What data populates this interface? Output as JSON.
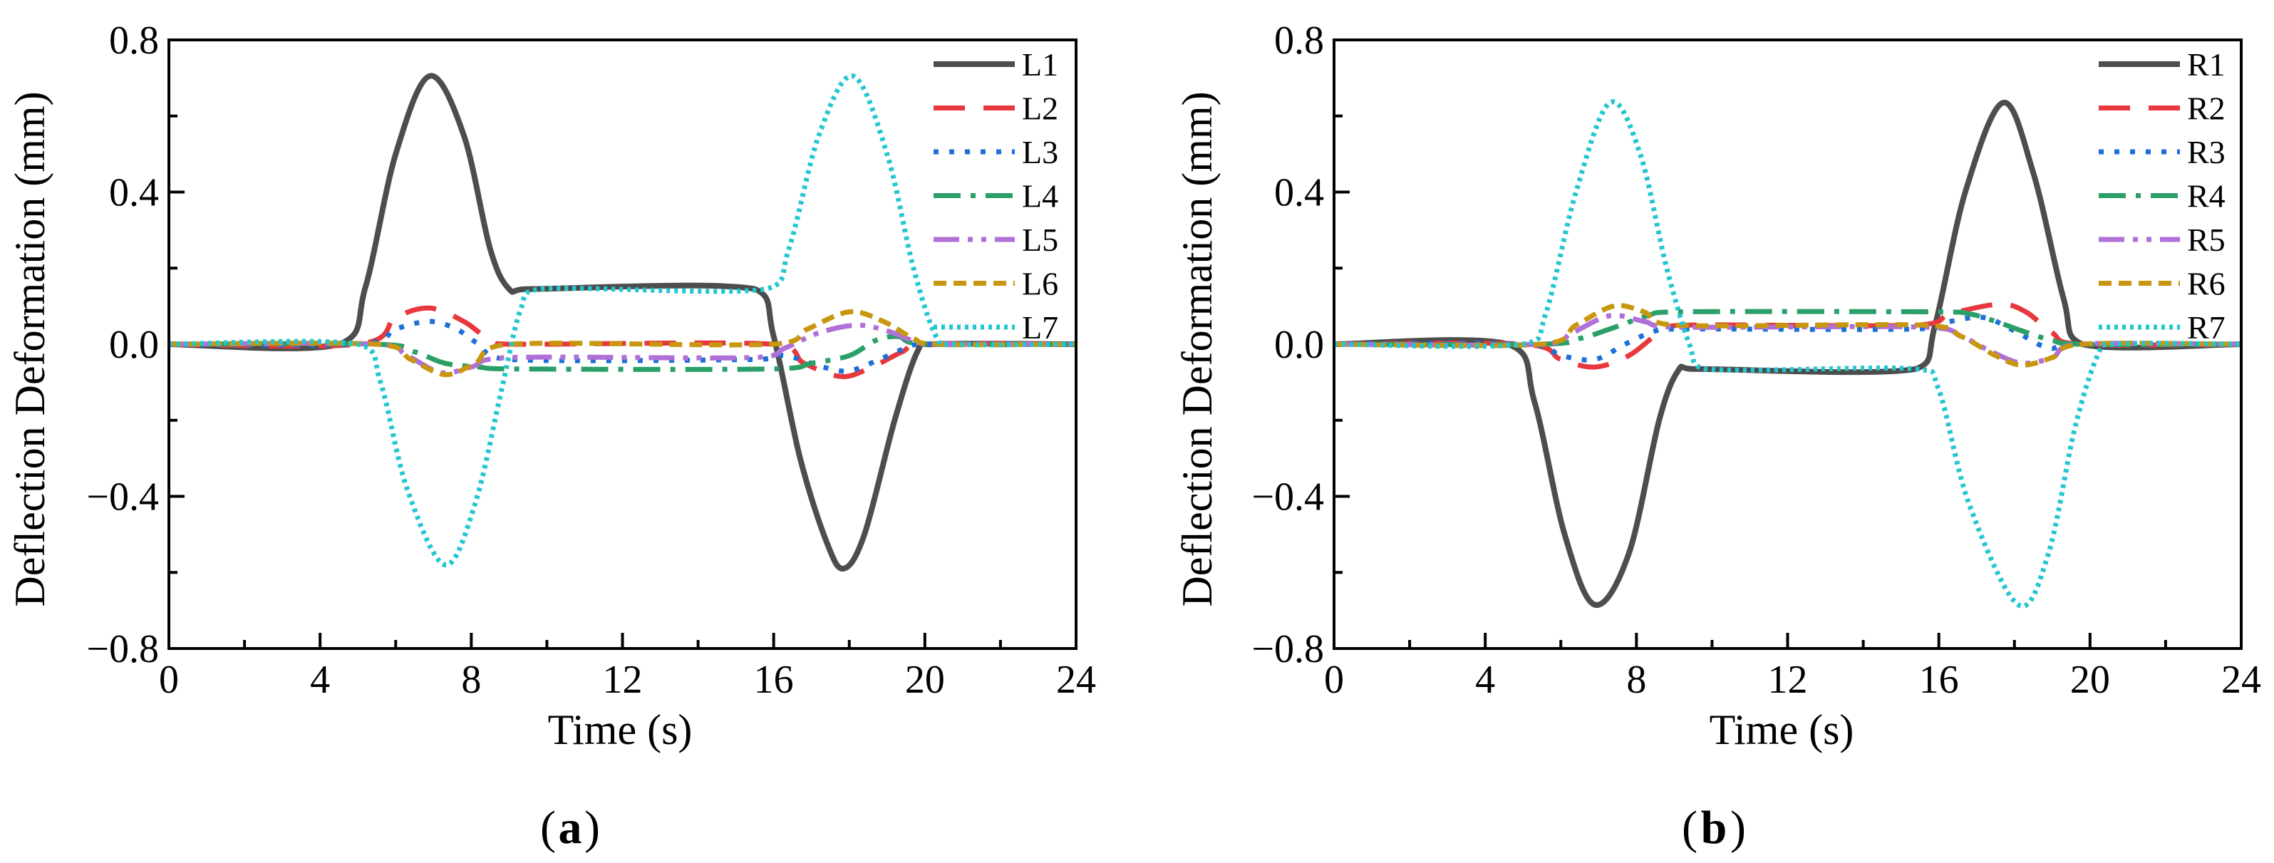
{
  "figure_labels": {
    "a": "a",
    "b": "b"
  },
  "chart_data": [
    {
      "id": "a",
      "type": "line",
      "panel_label": "a",
      "title": "",
      "xlabel": "Time (s)",
      "ylabel": "Deflection Deformation (mm)",
      "xlim": [
        0,
        24
      ],
      "ylim": [
        -0.8,
        0.8
      ],
      "x_ticks": [
        0,
        4,
        8,
        12,
        16,
        20,
        24
      ],
      "x_tick_labels": [
        "0",
        "4",
        "8",
        "12",
        "16",
        "20",
        "24"
      ],
      "y_ticks": [
        -0.8,
        -0.4,
        0.0,
        0.4,
        0.8
      ],
      "y_tick_labels": [
        "−0.8",
        "−0.4",
        "0.0",
        "0.4",
        "0.8"
      ],
      "legend_position": "top-right",
      "series": [
        {
          "name": "L1",
          "color": "#4d4d4d",
          "dash": "solid",
          "points": [
            [
              0,
              0
            ],
            [
              4.5,
              0
            ],
            [
              5.2,
              0.15
            ],
            [
              6,
              0.5
            ],
            [
              6.9,
              0.705
            ],
            [
              7.8,
              0.55
            ],
            [
              8.5,
              0.25
            ],
            [
              9,
              0.145
            ],
            [
              9.5,
              0.145
            ],
            [
              15.5,
              0.145
            ],
            [
              16,
              0.02
            ],
            [
              16.7,
              -0.3
            ],
            [
              17.4,
              -0.52
            ],
            [
              17.85,
              -0.59
            ],
            [
              18.4,
              -0.5
            ],
            [
              19.2,
              -0.2
            ],
            [
              19.8,
              -0.02
            ],
            [
              20.2,
              0
            ],
            [
              24,
              0
            ]
          ]
        },
        {
          "name": "L2",
          "color": "#e8383d",
          "dash": "longdash",
          "points": [
            [
              0,
              0
            ],
            [
              5,
              0
            ],
            [
              6,
              0.07
            ],
            [
              6.9,
              0.095
            ],
            [
              7.8,
              0.06
            ],
            [
              8.5,
              0.01
            ],
            [
              9,
              0
            ],
            [
              16,
              0
            ],
            [
              16.8,
              -0.05
            ],
            [
              17.8,
              -0.085
            ],
            [
              18.6,
              -0.06
            ],
            [
              19.4,
              -0.02
            ],
            [
              20,
              0
            ],
            [
              24,
              0
            ]
          ]
        },
        {
          "name": "L3",
          "color": "#1f6fd8",
          "dash": "dot",
          "points": [
            [
              0,
              0
            ],
            [
              5,
              0
            ],
            [
              6,
              0.04
            ],
            [
              6.9,
              0.06
            ],
            [
              7.6,
              0.04
            ],
            [
              8.2,
              0
            ],
            [
              9,
              -0.04
            ],
            [
              15.5,
              -0.04
            ],
            [
              16.3,
              -0.03
            ],
            [
              17.3,
              -0.06
            ],
            [
              18,
              -0.07
            ],
            [
              18.8,
              -0.04
            ],
            [
              19.5,
              -0.01
            ],
            [
              20,
              0
            ],
            [
              24,
              0
            ]
          ]
        },
        {
          "name": "L4",
          "color": "#2aa068",
          "dash": "dashdot",
          "points": [
            [
              0,
              0
            ],
            [
              5.5,
              0
            ],
            [
              6.5,
              -0.02
            ],
            [
              7.3,
              -0.05
            ],
            [
              8.2,
              -0.06
            ],
            [
              9,
              -0.065
            ],
            [
              16,
              -0.065
            ],
            [
              17,
              -0.05
            ],
            [
              18,
              -0.03
            ],
            [
              18.7,
              0.01
            ],
            [
              19.3,
              0.02
            ],
            [
              20,
              0
            ],
            [
              24,
              0
            ]
          ]
        },
        {
          "name": "L5",
          "color": "#b070d8",
          "dash": "dashdotdot",
          "points": [
            [
              0,
              0
            ],
            [
              5.5,
              0
            ],
            [
              6.3,
              -0.03
            ],
            [
              7.2,
              -0.075
            ],
            [
              8,
              -0.06
            ],
            [
              9,
              -0.035
            ],
            [
              15.5,
              -0.035
            ],
            [
              16.3,
              -0.01
            ],
            [
              17.2,
              0.03
            ],
            [
              18.2,
              0.05
            ],
            [
              19,
              0.035
            ],
            [
              19.8,
              0.005
            ],
            [
              20.3,
              0
            ],
            [
              24,
              0
            ]
          ]
        },
        {
          "name": "L6",
          "color": "#c8960f",
          "dash": "shortdash",
          "points": [
            [
              0,
              0
            ],
            [
              5.5,
              0
            ],
            [
              6.4,
              -0.04
            ],
            [
              7.3,
              -0.08
            ],
            [
              8.1,
              -0.05
            ],
            [
              9,
              0
            ],
            [
              16,
              0
            ],
            [
              16.9,
              0.04
            ],
            [
              18,
              0.085
            ],
            [
              18.9,
              0.06
            ],
            [
              19.7,
              0.015
            ],
            [
              20.3,
              0
            ],
            [
              24,
              0
            ]
          ]
        },
        {
          "name": "L7",
          "color": "#22c7cf",
          "dash": "finedot",
          "points": [
            [
              0,
              0
            ],
            [
              5,
              0
            ],
            [
              5.6,
              -0.1
            ],
            [
              6.3,
              -0.38
            ],
            [
              7.3,
              -0.58
            ],
            [
              8.1,
              -0.42
            ],
            [
              8.8,
              -0.12
            ],
            [
              9.3,
              0.09
            ],
            [
              9.8,
              0.145
            ],
            [
              15.8,
              0.145
            ],
            [
              16.4,
              0.25
            ],
            [
              17.2,
              0.55
            ],
            [
              18.1,
              0.705
            ],
            [
              19,
              0.5
            ],
            [
              19.7,
              0.2
            ],
            [
              20.3,
              0.02
            ],
            [
              20.8,
              0
            ],
            [
              24,
              0
            ]
          ]
        }
      ]
    },
    {
      "id": "b",
      "type": "line",
      "panel_label": "b",
      "title": "",
      "xlabel": "Time (s)",
      "ylabel": "Deflection Deformation (mm)",
      "xlim": [
        0,
        24
      ],
      "ylim": [
        -0.8,
        0.8
      ],
      "x_ticks": [
        0,
        4,
        8,
        12,
        16,
        20,
        24
      ],
      "x_tick_labels": [
        "0",
        "4",
        "8",
        "12",
        "16",
        "20",
        "24"
      ],
      "y_ticks": [
        -0.8,
        -0.4,
        0.0,
        0.4,
        0.8
      ],
      "y_tick_labels": [
        "−0.8",
        "−0.4",
        "0.0",
        "0.4",
        "0.8"
      ],
      "legend_position": "top-right",
      "series": [
        {
          "name": "R1",
          "color": "#4d4d4d",
          "dash": "solid",
          "points": [
            [
              0,
              0
            ],
            [
              4.6,
              0
            ],
            [
              5.3,
              -0.15
            ],
            [
              6.1,
              -0.5
            ],
            [
              6.9,
              -0.685
            ],
            [
              7.8,
              -0.55
            ],
            [
              8.6,
              -0.2
            ],
            [
              9.1,
              -0.07
            ],
            [
              9.5,
              -0.065
            ],
            [
              15.4,
              -0.065
            ],
            [
              15.9,
              0.05
            ],
            [
              16.7,
              0.4
            ],
            [
              17.7,
              0.635
            ],
            [
              18.5,
              0.45
            ],
            [
              19.3,
              0.12
            ],
            [
              19.8,
              0
            ],
            [
              24,
              0
            ]
          ]
        },
        {
          "name": "R2",
          "color": "#e8383d",
          "dash": "longdash",
          "points": [
            [
              0,
              0
            ],
            [
              5,
              0
            ],
            [
              6,
              -0.04
            ],
            [
              6.9,
              -0.06
            ],
            [
              7.8,
              -0.03
            ],
            [
              8.6,
              0.03
            ],
            [
              9.2,
              0.05
            ],
            [
              15.4,
              0.05
            ],
            [
              16.3,
              0.08
            ],
            [
              17.6,
              0.105
            ],
            [
              18.3,
              0.085
            ],
            [
              19,
              0.03
            ],
            [
              19.7,
              0
            ],
            [
              24,
              0
            ]
          ]
        },
        {
          "name": "R3",
          "color": "#1f6fd8",
          "dash": "dot",
          "points": [
            [
              0,
              0
            ],
            [
              5,
              0
            ],
            [
              6,
              -0.03
            ],
            [
              6.9,
              -0.04
            ],
            [
              7.7,
              0
            ],
            [
              8.5,
              0.035
            ],
            [
              9.2,
              0.04
            ],
            [
              15.4,
              0.04
            ],
            [
              16.3,
              0.06
            ],
            [
              17.2,
              0.07
            ],
            [
              18,
              0.035
            ],
            [
              18.9,
              -0.01
            ],
            [
              19.7,
              0
            ],
            [
              24,
              0
            ]
          ]
        },
        {
          "name": "R4",
          "color": "#2aa068",
          "dash": "dashdot",
          "points": [
            [
              0,
              0
            ],
            [
              5.5,
              0
            ],
            [
              6.5,
              0.015
            ],
            [
              7.3,
              0.04
            ],
            [
              8.3,
              0.075
            ],
            [
              9,
              0.085
            ],
            [
              16,
              0.085
            ],
            [
              16.8,
              0.08
            ],
            [
              17.5,
              0.06
            ],
            [
              18.2,
              0.035
            ],
            [
              19,
              0.01
            ],
            [
              19.8,
              0
            ],
            [
              24,
              0
            ]
          ]
        },
        {
          "name": "R5",
          "color": "#b070d8",
          "dash": "dashdotdot",
          "points": [
            [
              0,
              0
            ],
            [
              5.5,
              0
            ],
            [
              6.3,
              0.03
            ],
            [
              7.3,
              0.075
            ],
            [
              8.2,
              0.06
            ],
            [
              9,
              0.045
            ],
            [
              15.6,
              0.045
            ],
            [
              16.6,
              0.02
            ],
            [
              17.4,
              -0.02
            ],
            [
              18.2,
              -0.05
            ],
            [
              19,
              -0.035
            ],
            [
              19.7,
              0
            ],
            [
              24,
              0
            ]
          ]
        },
        {
          "name": "R6",
          "color": "#c8960f",
          "dash": "shortdash",
          "points": [
            [
              0,
              0
            ],
            [
              5.5,
              0
            ],
            [
              6.4,
              0.05
            ],
            [
              7.4,
              0.1
            ],
            [
              8.2,
              0.085
            ],
            [
              9,
              0.05
            ],
            [
              15.6,
              0.05
            ],
            [
              16.6,
              0.02
            ],
            [
              17.5,
              -0.03
            ],
            [
              18.2,
              -0.055
            ],
            [
              19,
              -0.035
            ],
            [
              19.8,
              0
            ],
            [
              24,
              0
            ]
          ]
        },
        {
          "name": "R7",
          "color": "#22c7cf",
          "dash": "finedot",
          "points": [
            [
              0,
              0
            ],
            [
              5,
              0
            ],
            [
              5.6,
              0.08
            ],
            [
              6.4,
              0.4
            ],
            [
              7.3,
              0.635
            ],
            [
              8.1,
              0.5
            ],
            [
              8.8,
              0.2
            ],
            [
              9.4,
              0
            ],
            [
              9.8,
              -0.065
            ],
            [
              15.4,
              -0.065
            ],
            [
              16,
              -0.12
            ],
            [
              16.8,
              -0.42
            ],
            [
              18.1,
              -0.685
            ],
            [
              18.9,
              -0.55
            ],
            [
              19.6,
              -0.22
            ],
            [
              20.2,
              -0.03
            ],
            [
              20.6,
              0
            ],
            [
              24,
              0
            ]
          ]
        }
      ]
    }
  ]
}
